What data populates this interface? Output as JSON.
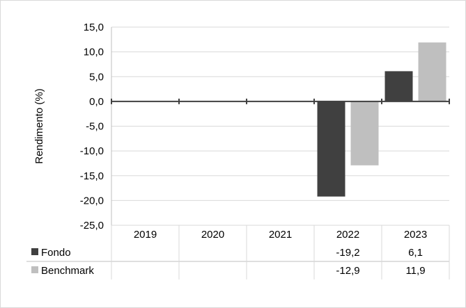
{
  "chart_data": {
    "type": "bar",
    "categories": [
      "2019",
      "2020",
      "2021",
      "2022",
      "2023"
    ],
    "series": [
      {
        "name": "Fondo",
        "values": [
          null,
          null,
          null,
          -19.2,
          6.1
        ],
        "labels": [
          "",
          "",
          "",
          "-19,2",
          "6,1"
        ],
        "color": "#404040"
      },
      {
        "name": "Benchmark",
        "values": [
          null,
          null,
          null,
          -12.9,
          11.9
        ],
        "labels": [
          "",
          "",
          "",
          "-12,9",
          "11,9"
        ],
        "color": "#bfbfbf"
      }
    ],
    "ylabel": "Rendimento (%)",
    "ylim": [
      -25,
      15
    ],
    "yticks": [
      15,
      10,
      5,
      0,
      -5,
      -10,
      -15,
      -20,
      -25
    ],
    "ytick_labels": [
      "15,0",
      "10,0",
      "5,0",
      "0,0",
      "-5,0",
      "-10,0",
      "-15,0",
      "-20,0",
      "-25,0"
    ],
    "grid": true,
    "legend": "data-table-below"
  }
}
